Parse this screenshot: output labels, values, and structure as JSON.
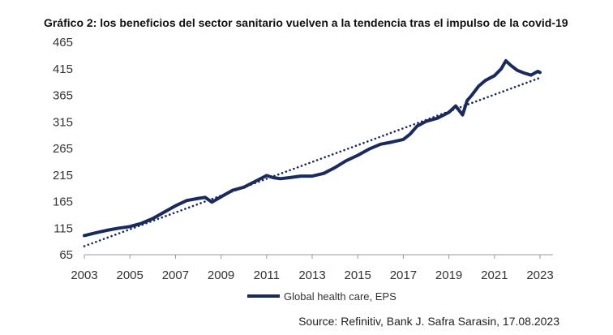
{
  "chart_data": {
    "type": "line",
    "title": "Gráfico 2: los beneficios del sector sanitario vuelven a la tendencia tras el impulso de la covid-19",
    "source": "Source: Refinitiv, Bank J. Safra Sarasin, 17.08.2023",
    "xlabel": "",
    "ylabel": "",
    "xlim": [
      2003,
      2023.3
    ],
    "ylim": [
      65,
      465
    ],
    "x_ticks": [
      2003,
      2005,
      2007,
      2009,
      2011,
      2013,
      2015,
      2017,
      2019,
      2021,
      2023
    ],
    "y_ticks": [
      65,
      115,
      165,
      215,
      265,
      315,
      365,
      415,
      465
    ],
    "grid": false,
    "legend": "bottom-center",
    "series": [
      {
        "name": "Global health care, EPS",
        "color": "#1b2a5c",
        "style": "solid",
        "x": [
          2003.0,
          2003.5,
          2004.0,
          2004.5,
          2005.0,
          2005.5,
          2006.0,
          2006.5,
          2007.0,
          2007.5,
          2008.0,
          2008.3,
          2008.6,
          2009.0,
          2009.5,
          2010.0,
          2010.5,
          2011.0,
          2011.3,
          2011.6,
          2012.0,
          2012.5,
          2013.0,
          2013.5,
          2014.0,
          2014.5,
          2015.0,
          2015.5,
          2016.0,
          2016.5,
          2017.0,
          2017.3,
          2017.6,
          2018.0,
          2018.5,
          2019.0,
          2019.3,
          2019.6,
          2019.8,
          2020.0,
          2020.3,
          2020.6,
          2021.0,
          2021.3,
          2021.5,
          2021.7,
          2022.0,
          2022.3,
          2022.6,
          2022.9,
          2023.0
        ],
        "y": [
          101,
          106,
          111,
          115,
          118,
          124,
          133,
          145,
          157,
          167,
          171,
          173,
          164,
          174,
          186,
          192,
          203,
          214,
          210,
          208,
          210,
          213,
          213,
          218,
          229,
          242,
          252,
          264,
          273,
          277,
          282,
          292,
          307,
          316,
          322,
          333,
          345,
          328,
          355,
          365,
          382,
          393,
          402,
          415,
          430,
          422,
          412,
          407,
          403,
          410,
          408
        ]
      },
      {
        "name": "",
        "color": "#1b2a5c",
        "style": "dotted",
        "x": [
          2003.0,
          2023.0
        ],
        "y": [
          81,
          398
        ]
      }
    ]
  }
}
